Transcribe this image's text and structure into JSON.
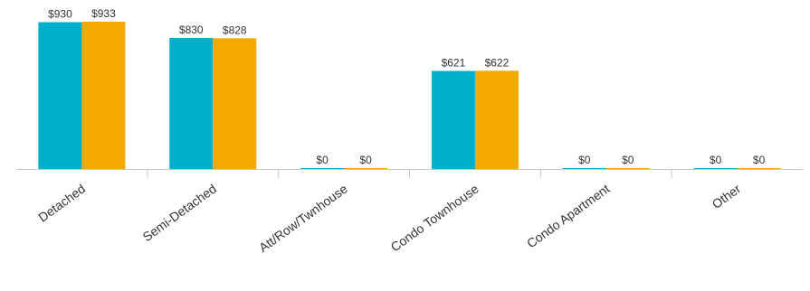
{
  "chart_data": {
    "type": "bar",
    "categories": [
      "Detached",
      "Semi-Detached",
      "Att/Row/Twnhouse",
      "Condo Townhouse",
      "Condo Apartment",
      "Other"
    ],
    "series": [
      {
        "color": "#00afc9",
        "values": [
          930,
          830,
          0,
          621,
          0,
          0
        ],
        "labels": [
          "$930",
          "$830",
          "$0",
          "$621",
          "$0",
          "$0"
        ]
      },
      {
        "color": "#f5a800",
        "values": [
          933,
          828,
          0,
          622,
          0,
          0
        ],
        "labels": [
          "$933",
          "$828",
          "$0",
          "$622",
          "$0",
          "$0"
        ]
      }
    ],
    "ylim": [
      0,
      933
    ],
    "grid": false,
    "legend": "none"
  }
}
